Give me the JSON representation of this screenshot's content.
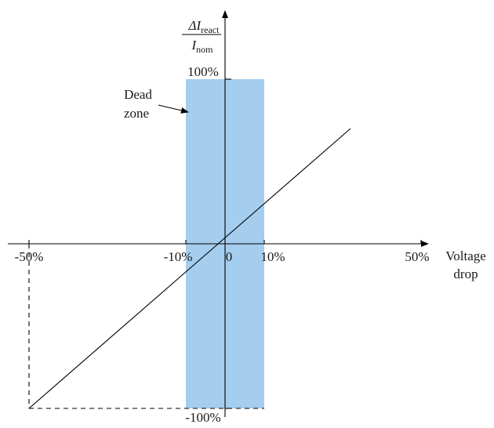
{
  "axis": {
    "y_label_numerator": "ΔI",
    "y_label_numerator_sub": "react",
    "y_label_denominator": "I",
    "y_label_denominator_sub": "nom",
    "x_label_line1": "Voltage",
    "x_label_line2": "drop"
  },
  "ticks": {
    "x": [
      {
        "id": "xtick-neg50",
        "label": "-50%",
        "value": -50
      },
      {
        "id": "xtick-neg10",
        "label": "-10%",
        "value": -10
      },
      {
        "id": "xtick-zero",
        "label": "0",
        "value": 0
      },
      {
        "id": "xtick-pos10",
        "label": "10%",
        "value": 10
      },
      {
        "id": "xtick-pos50",
        "label": "50%",
        "value": 50
      }
    ],
    "y": [
      {
        "id": "ytick-pos100",
        "label": "100%",
        "value": 100
      },
      {
        "id": "ytick-neg100",
        "label": "-100%",
        "value": -100
      }
    ]
  },
  "dead_zone": {
    "label_line1": "Dead",
    "label_line2": "zone",
    "x_range": [
      -10,
      10
    ],
    "y_range": [
      -100,
      100
    ],
    "color": "#a4cdee"
  },
  "characteristic": {
    "start": {
      "x": -50,
      "y": -100
    },
    "end": {
      "x": 32,
      "y": 70
    }
  },
  "colors": {
    "axis": "#000000",
    "line": "#000000"
  }
}
